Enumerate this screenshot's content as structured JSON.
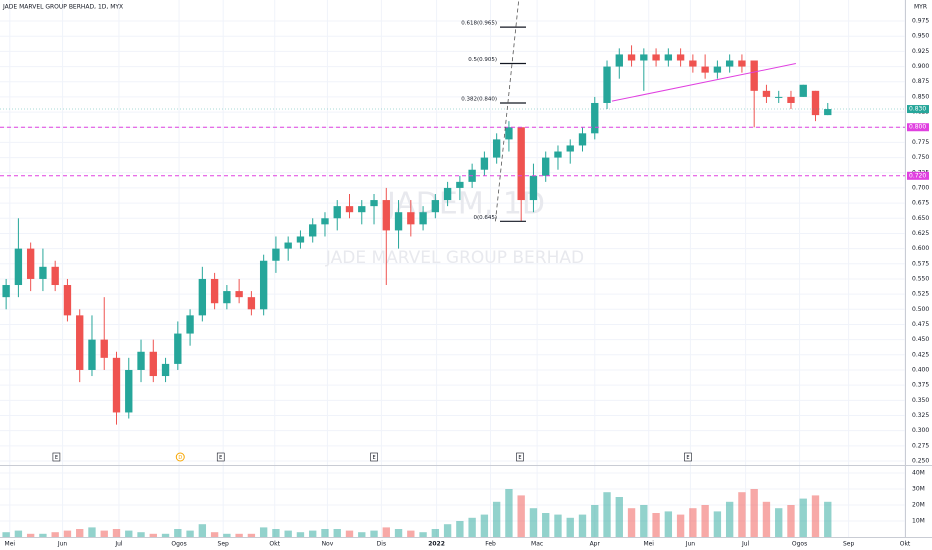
{
  "chart_data": [
    {
      "type": "candlestick",
      "title": "JADE MARVEL GROUP BERHAD, 1D, MYX",
      "watermark": "JADEM, 1D",
      "subtitle": "JADE MARVEL GROUP BERHAD",
      "currency": "MYR",
      "up_color": "#26a69a",
      "down_color": "#ef5350",
      "open": [
        0.52,
        0.54,
        0.6,
        0.55,
        0.57,
        0.54,
        0.49,
        0.4,
        0.45,
        0.42,
        0.33,
        0.4,
        0.43,
        0.39,
        0.41,
        0.46,
        0.49,
        0.55,
        0.51,
        0.53,
        0.52,
        0.5,
        0.58,
        0.6,
        0.61,
        0.62,
        0.64,
        0.65,
        0.67,
        0.66,
        0.67,
        0.68,
        0.63,
        0.66,
        0.64,
        0.66,
        0.68,
        0.7,
        0.71,
        0.73,
        0.75,
        0.78,
        0.8,
        0.68,
        0.72,
        0.75,
        0.76,
        0.77,
        0.79,
        0.84,
        0.9,
        0.92,
        0.91,
        0.92,
        0.91,
        0.92,
        0.91,
        0.9,
        0.89,
        0.9,
        0.91,
        0.91,
        0.86,
        0.85,
        0.85,
        0.85,
        0.86,
        0.82
      ],
      "high": [
        0.55,
        0.65,
        0.61,
        0.6,
        0.58,
        0.55,
        0.5,
        0.49,
        0.52,
        0.43,
        0.42,
        0.45,
        0.45,
        0.42,
        0.48,
        0.5,
        0.57,
        0.56,
        0.54,
        0.55,
        0.53,
        0.59,
        0.62,
        0.62,
        0.63,
        0.65,
        0.66,
        0.68,
        0.69,
        0.68,
        0.69,
        0.7,
        0.68,
        0.68,
        0.67,
        0.69,
        0.71,
        0.72,
        0.74,
        0.76,
        0.79,
        0.81,
        0.8,
        0.74,
        0.76,
        0.77,
        0.78,
        0.8,
        0.85,
        0.91,
        0.93,
        0.935,
        0.93,
        0.93,
        0.93,
        0.93,
        0.92,
        0.92,
        0.91,
        0.92,
        0.92,
        0.91,
        0.87,
        0.86,
        0.86,
        0.87,
        0.86,
        0.84
      ],
      "low": [
        0.5,
        0.52,
        0.53,
        0.53,
        0.53,
        0.48,
        0.38,
        0.39,
        0.4,
        0.31,
        0.32,
        0.38,
        0.38,
        0.38,
        0.4,
        0.44,
        0.48,
        0.5,
        0.5,
        0.51,
        0.49,
        0.49,
        0.56,
        0.58,
        0.6,
        0.61,
        0.62,
        0.63,
        0.65,
        0.64,
        0.64,
        0.54,
        0.6,
        0.62,
        0.63,
        0.65,
        0.67,
        0.68,
        0.7,
        0.72,
        0.74,
        0.76,
        0.645,
        0.66,
        0.71,
        0.73,
        0.74,
        0.76,
        0.78,
        0.83,
        0.88,
        0.9,
        0.86,
        0.9,
        0.9,
        0.9,
        0.89,
        0.88,
        0.88,
        0.89,
        0.89,
        0.8,
        0.84,
        0.84,
        0.83,
        0.85,
        0.81,
        0.82
      ],
      "close": [
        0.54,
        0.6,
        0.55,
        0.57,
        0.54,
        0.49,
        0.4,
        0.45,
        0.42,
        0.33,
        0.4,
        0.43,
        0.39,
        0.41,
        0.46,
        0.49,
        0.55,
        0.51,
        0.53,
        0.52,
        0.5,
        0.58,
        0.6,
        0.61,
        0.62,
        0.64,
        0.65,
        0.67,
        0.66,
        0.67,
        0.68,
        0.63,
        0.66,
        0.64,
        0.66,
        0.68,
        0.7,
        0.71,
        0.73,
        0.75,
        0.78,
        0.8,
        0.68,
        0.72,
        0.75,
        0.76,
        0.77,
        0.79,
        0.84,
        0.9,
        0.92,
        0.91,
        0.92,
        0.91,
        0.92,
        0.91,
        0.9,
        0.89,
        0.9,
        0.91,
        0.9,
        0.86,
        0.85,
        0.85,
        0.84,
        0.87,
        0.82,
        0.83
      ],
      "ylim": [
        0.2434,
        1.0097
      ],
      "xlim": [
        -0.5,
        75.5
      ],
      "yticks": [
        {
          "value": 0.25,
          "label": "0.250"
        },
        {
          "value": 0.275,
          "label": "0.275"
        },
        {
          "value": 0.3,
          "label": "0.300"
        },
        {
          "value": 0.325,
          "label": "0.325"
        },
        {
          "value": 0.35,
          "label": "0.350"
        },
        {
          "value": 0.375,
          "label": "0.375"
        },
        {
          "value": 0.4,
          "label": "0.400"
        },
        {
          "value": 0.425,
          "label": "0.425"
        },
        {
          "value": 0.45,
          "label": "0.450"
        },
        {
          "value": 0.475,
          "label": "0.475"
        },
        {
          "value": 0.5,
          "label": "0.500"
        },
        {
          "value": 0.525,
          "label": "0.525"
        },
        {
          "value": 0.55,
          "label": "0.550"
        },
        {
          "value": 0.575,
          "label": "0.575"
        },
        {
          "value": 0.6,
          "label": "0.600"
        },
        {
          "value": 0.625,
          "label": "0.625"
        },
        {
          "value": 0.65,
          "label": "0.650"
        },
        {
          "value": 0.675,
          "label": "0.675"
        },
        {
          "value": 0.7,
          "label": "0.700"
        },
        {
          "value": 0.725,
          "label": "0.725"
        },
        {
          "value": 0.75,
          "label": "0.750"
        },
        {
          "value": 0.775,
          "label": "0.775"
        },
        {
          "value": 0.8,
          "label": "0.800"
        },
        {
          "value": 0.825,
          "label": "0.825"
        },
        {
          "value": 0.85,
          "label": "0.850"
        },
        {
          "value": 0.875,
          "label": "0.875"
        },
        {
          "value": 0.9,
          "label": "0.900"
        },
        {
          "value": 0.925,
          "label": "0.925"
        },
        {
          "value": 0.95,
          "label": "0.950"
        },
        {
          "value": 0.975,
          "label": "0.975"
        }
      ],
      "last_price": {
        "value": 0.83,
        "label": "0.830",
        "color": "#26a69a"
      },
      "levels": [
        {
          "value": 0.8,
          "label": "0.800",
          "color": "#e040e0"
        },
        {
          "value": 0.72,
          "label": "0.720",
          "color": "#e040e0"
        }
      ],
      "fib": [
        {
          "value": 0.965,
          "label": "0.618(0.965)"
        },
        {
          "value": 0.905,
          "label": "0.5(0.905)"
        },
        {
          "value": 0.84,
          "label": "0.382(0.840)"
        },
        {
          "value": 0.645,
          "label": "0(0.645)"
        }
      ],
      "trendlines": [
        {
          "color": "#e040e0",
          "dash": false,
          "x": [
            49.4,
            64.4
          ],
          "y": [
            0.843,
            0.905
          ]
        },
        {
          "color": "#555555",
          "dash": true,
          "x": [
            39.9,
            41.8
          ],
          "y": [
            0.645,
            1.0097
          ]
        }
      ],
      "events": [
        {
          "x": 4.1,
          "label": "E"
        },
        {
          "x": 17.5,
          "label": "E"
        },
        {
          "x": 30.0,
          "label": "E"
        },
        {
          "x": 41.9,
          "label": "E"
        },
        {
          "x": 55.6,
          "label": "E"
        },
        {
          "x": 14.2,
          "label": "D"
        }
      ]
    },
    {
      "type": "volume",
      "values": [
        3,
        4,
        2,
        2,
        3,
        4,
        5,
        6,
        4,
        5,
        4,
        3,
        2,
        2,
        5,
        4,
        8,
        3,
        2,
        2,
        2,
        6,
        5,
        4,
        3,
        4,
        5,
        5,
        4,
        3,
        4,
        6,
        5,
        4,
        3,
        5,
        8,
        10,
        12,
        14,
        22,
        30,
        26,
        18,
        15,
        14,
        12,
        14,
        20,
        28,
        25,
        18,
        20,
        15,
        16,
        14,
        18,
        20,
        16,
        22,
        28,
        30,
        22,
        18,
        20,
        24,
        26,
        22
      ],
      "ylim": [
        0,
        43.75
      ],
      "yticks": [
        {
          "value": 10,
          "label": "10M"
        },
        {
          "value": 20,
          "label": "20M"
        },
        {
          "value": 30,
          "label": "30M"
        },
        {
          "value": 40,
          "label": "40M"
        }
      ],
      "xticks": [
        {
          "value": 0.3,
          "label": "Mei"
        },
        {
          "value": 4.6,
          "label": "Jun"
        },
        {
          "value": 9.2,
          "label": "Jul"
        },
        {
          "value": 14.1,
          "label": "Ogos"
        },
        {
          "value": 17.7,
          "label": "Sep"
        },
        {
          "value": 21.9,
          "label": "Okt"
        },
        {
          "value": 26.2,
          "label": "Nov"
        },
        {
          "value": 30.6,
          "label": "Dis"
        },
        {
          "value": 35.1,
          "label": "2022"
        },
        {
          "value": 39.5,
          "label": "Feb"
        },
        {
          "value": 43.3,
          "label": "Mac"
        },
        {
          "value": 48.0,
          "label": "Apr"
        },
        {
          "value": 52.4,
          "label": "Mei"
        },
        {
          "value": 55.8,
          "label": "Jun"
        },
        {
          "value": 60.3,
          "label": "Jul"
        },
        {
          "value": 64.7,
          "label": "Ogos"
        },
        {
          "value": 68.7,
          "label": "Sep"
        },
        {
          "value": 73.3,
          "label": "Okt"
        }
      ]
    }
  ]
}
